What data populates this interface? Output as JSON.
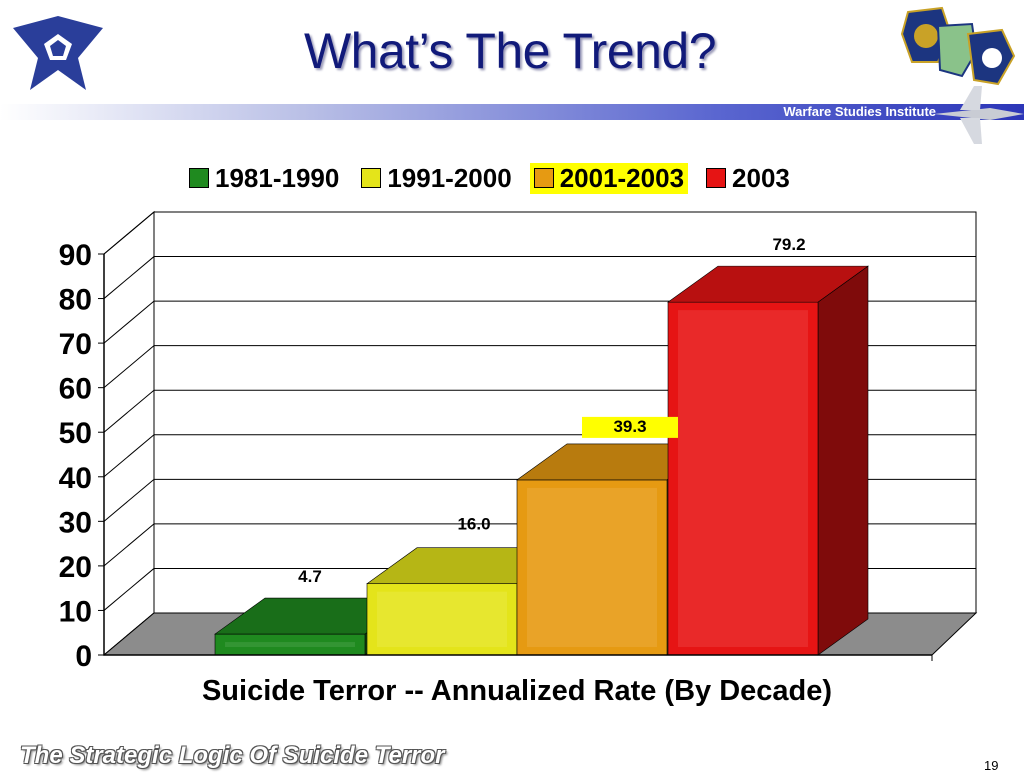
{
  "slide": {
    "title": "What’s The Trend?",
    "institute": "Warfare Studies Institute",
    "footer": "The Strategic Logic Of Suicide Terror",
    "page": "19"
  },
  "chart_data": {
    "type": "bar",
    "categories": [
      "1981-1990",
      "1991-2000",
      "2001-2003",
      "2003"
    ],
    "values": [
      4.7,
      16.0,
      39.3,
      79.2
    ],
    "value_labels": [
      "4.7",
      "16.0",
      "39.3",
      "79.2"
    ],
    "colors": [
      "#1f8a1f",
      "#e4e41a",
      "#e69a12",
      "#e61414"
    ],
    "xlabel": "Suicide Terror -- Annualized Rate (By Decade)",
    "ylabel": "",
    "ylim": [
      0,
      90
    ],
    "yticks": [
      "0",
      "10",
      "20",
      "30",
      "40",
      "50",
      "60",
      "70",
      "80",
      "90"
    ],
    "grid": true,
    "legend": "top",
    "highlighted": "2001-2003"
  }
}
